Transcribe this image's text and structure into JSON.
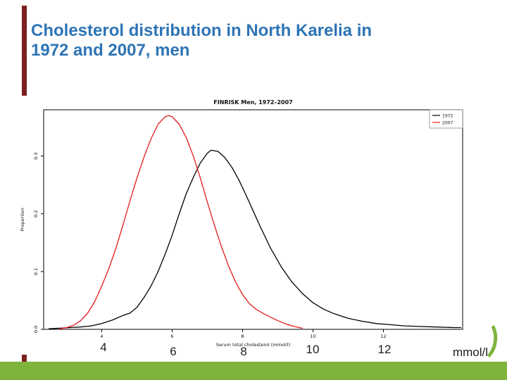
{
  "accent_colors": {
    "left_bar": "#7c2020",
    "bottom_bar": "#7fb43c",
    "title_text": "#2e74b5",
    "series_1972": "#000000",
    "series_2007": "#e31a1c"
  },
  "title": {
    "line1": "Cholesterol distribution in North Karelia in",
    "line2": "1972 and 2007, men"
  },
  "axis_overlay": {
    "labels": [
      "4",
      "6",
      "8",
      "10",
      "12"
    ],
    "unit": "mmol/l"
  },
  "chart_data": {
    "type": "line",
    "title": "FINRISK Men, 1972–2007",
    "xlabel": "Serum total cholesterol (mmol/l)",
    "ylabel": "Proportion",
    "xlim": [
      2.35,
      14.25
    ],
    "ylim": [
      0,
      0.38
    ],
    "x_ticks": [
      4,
      6,
      8,
      10,
      12
    ],
    "y_ticks": [
      "0.0",
      "0.1",
      "0.2",
      "0.3"
    ],
    "grid": false,
    "legend_position": "top-right",
    "series": [
      {
        "name": "1972",
        "color": "#000000",
        "x": [
          2.5,
          2.8,
          3.1,
          3.4,
          3.7,
          4.0,
          4.3,
          4.6,
          4.8,
          5.0,
          5.2,
          5.4,
          5.6,
          5.8,
          6.0,
          6.2,
          6.4,
          6.6,
          6.8,
          7.0,
          7.1,
          7.3,
          7.5,
          7.7,
          7.9,
          8.1,
          8.3,
          8.5,
          8.8,
          9.1,
          9.4,
          9.7,
          10.0,
          10.3,
          10.6,
          11.0,
          11.4,
          11.8,
          12.2,
          12.6,
          13.0,
          13.5,
          14.0,
          14.2
        ],
        "y": [
          0.001,
          0.002,
          0.003,
          0.004,
          0.006,
          0.01,
          0.016,
          0.024,
          0.028,
          0.038,
          0.055,
          0.075,
          0.1,
          0.13,
          0.163,
          0.2,
          0.235,
          0.263,
          0.288,
          0.305,
          0.31,
          0.308,
          0.297,
          0.28,
          0.258,
          0.232,
          0.205,
          0.178,
          0.14,
          0.108,
          0.082,
          0.062,
          0.046,
          0.035,
          0.027,
          0.019,
          0.014,
          0.01,
          0.008,
          0.006,
          0.005,
          0.004,
          0.003,
          0.003
        ]
      },
      {
        "name": "2007",
        "color": "#e31a1c",
        "x": [
          2.8,
          3.0,
          3.2,
          3.4,
          3.6,
          3.8,
          4.0,
          4.2,
          4.4,
          4.6,
          4.8,
          5.0,
          5.2,
          5.4,
          5.6,
          5.8,
          5.9,
          6.0,
          6.2,
          6.4,
          6.6,
          6.8,
          7.0,
          7.2,
          7.4,
          7.6,
          7.8,
          8.0,
          8.2,
          8.4,
          8.6,
          8.8,
          9.0,
          9.2,
          9.4,
          9.6,
          9.7
        ],
        "y": [
          0.001,
          0.003,
          0.007,
          0.015,
          0.028,
          0.048,
          0.075,
          0.105,
          0.14,
          0.18,
          0.222,
          0.262,
          0.298,
          0.33,
          0.355,
          0.368,
          0.37,
          0.368,
          0.355,
          0.332,
          0.3,
          0.262,
          0.22,
          0.18,
          0.143,
          0.11,
          0.082,
          0.06,
          0.044,
          0.034,
          0.027,
          0.021,
          0.015,
          0.01,
          0.006,
          0.003,
          0.002
        ]
      }
    ]
  }
}
